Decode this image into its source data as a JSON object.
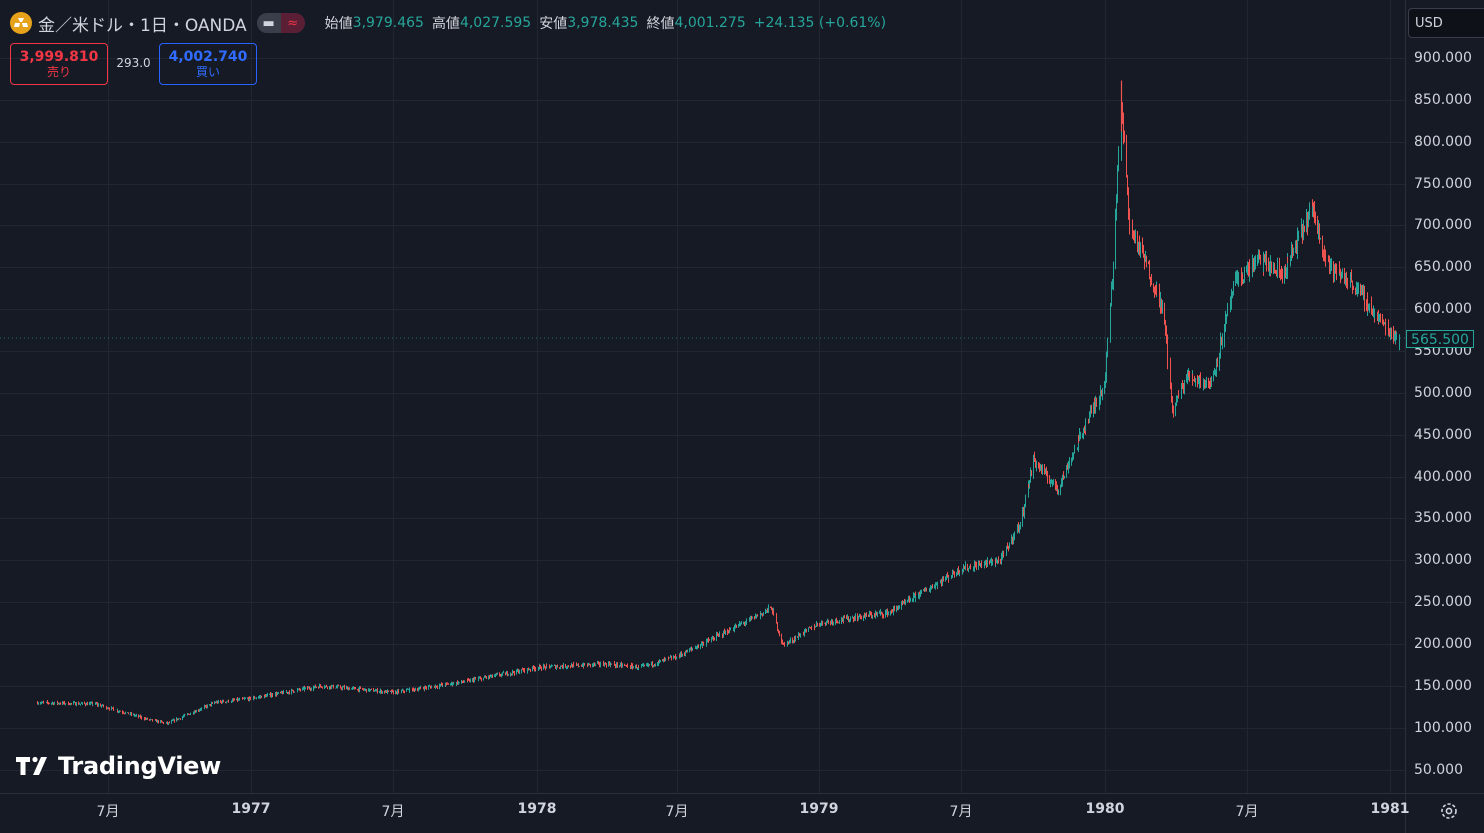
{
  "header": {
    "symbol_title": "金／米ドル・1日・OANDA",
    "open_label": "始値",
    "open_value": "3,979.465",
    "high_label": "高値",
    "high_value": "4,027.595",
    "low_label": "安値",
    "low_value": "3,978.435",
    "close_label": "終値",
    "close_value": "4,001.275",
    "change": "+24.135 (+0.61%)"
  },
  "trade": {
    "sell_price": "3,999.810",
    "sell_label": "売り",
    "spread": "293.0",
    "buy_price": "4,002.740",
    "buy_label": "買い"
  },
  "currency": "USD",
  "price_axis": {
    "ticks": [
      "900.000",
      "850.000",
      "800.000",
      "750.000",
      "700.000",
      "650.000",
      "600.000",
      "550.000",
      "500.000",
      "450.000",
      "400.000",
      "350.000",
      "300.000",
      "250.000",
      "200.000",
      "150.000",
      "100.000",
      "50.000"
    ],
    "last_price": "565.500"
  },
  "time_axis": {
    "ticks": [
      "7月",
      "1977",
      "7月",
      "1978",
      "7月",
      "1979",
      "7月",
      "1980",
      "7月",
      "1981"
    ]
  },
  "watermark": "TradingView",
  "colors": {
    "background": "#161a25",
    "up": "#26a69a",
    "down": "#ef5350",
    "grid": "#222633",
    "logo": "#e7a21b"
  },
  "chart_data": {
    "type": "candlestick",
    "symbol": "XAU/USD",
    "interval": "1D",
    "ylim": [
      25,
      925
    ],
    "y_ticks": [
      50,
      100,
      150,
      200,
      250,
      300,
      350,
      400,
      450,
      500,
      550,
      600,
      650,
      700,
      750,
      800,
      850,
      900
    ],
    "x_range": [
      "1976-04",
      "1981-01"
    ],
    "last_price": 565.5,
    "approx_close_path": [
      {
        "t": "1976-04-01",
        "v": 130
      },
      {
        "t": "1976-06-15",
        "v": 128
      },
      {
        "t": "1976-08-20",
        "v": 110
      },
      {
        "t": "1976-09-15",
        "v": 105
      },
      {
        "t": "1976-11-15",
        "v": 130
      },
      {
        "t": "1977-01-01",
        "v": 135
      },
      {
        "t": "1977-04-01",
        "v": 150
      },
      {
        "t": "1977-07-01",
        "v": 142
      },
      {
        "t": "1977-10-01",
        "v": 155
      },
      {
        "t": "1978-01-01",
        "v": 172
      },
      {
        "t": "1978-04-01",
        "v": 176
      },
      {
        "t": "1978-05-15",
        "v": 172
      },
      {
        "t": "1978-07-01",
        "v": 185
      },
      {
        "t": "1978-10-01",
        "v": 228
      },
      {
        "t": "1978-10-31",
        "v": 243
      },
      {
        "t": "1978-11-15",
        "v": 198
      },
      {
        "t": "1979-01-01",
        "v": 225
      },
      {
        "t": "1979-04-01",
        "v": 238
      },
      {
        "t": "1979-07-01",
        "v": 290
      },
      {
        "t": "1979-08-20",
        "v": 300
      },
      {
        "t": "1979-09-15",
        "v": 345
      },
      {
        "t": "1979-10-01",
        "v": 420
      },
      {
        "t": "1979-11-01",
        "v": 385
      },
      {
        "t": "1979-12-01",
        "v": 450
      },
      {
        "t": "1979-12-31",
        "v": 512
      },
      {
        "t": "1980-01-10",
        "v": 635
      },
      {
        "t": "1980-01-21",
        "v": 850
      },
      {
        "t": "1980-02-01",
        "v": 700
      },
      {
        "t": "1980-02-20",
        "v": 660
      },
      {
        "t": "1980-03-15",
        "v": 600
      },
      {
        "t": "1980-03-27",
        "v": 480
      },
      {
        "t": "1980-04-15",
        "v": 520
      },
      {
        "t": "1980-05-15",
        "v": 510
      },
      {
        "t": "1980-06-15",
        "v": 630
      },
      {
        "t": "1980-07-15",
        "v": 660
      },
      {
        "t": "1980-08-15",
        "v": 640
      },
      {
        "t": "1980-09-22",
        "v": 720
      },
      {
        "t": "1980-10-15",
        "v": 650
      },
      {
        "t": "1980-11-15",
        "v": 630
      },
      {
        "t": "1980-12-15",
        "v": 590
      },
      {
        "t": "1981-01-10",
        "v": 565
      }
    ]
  }
}
